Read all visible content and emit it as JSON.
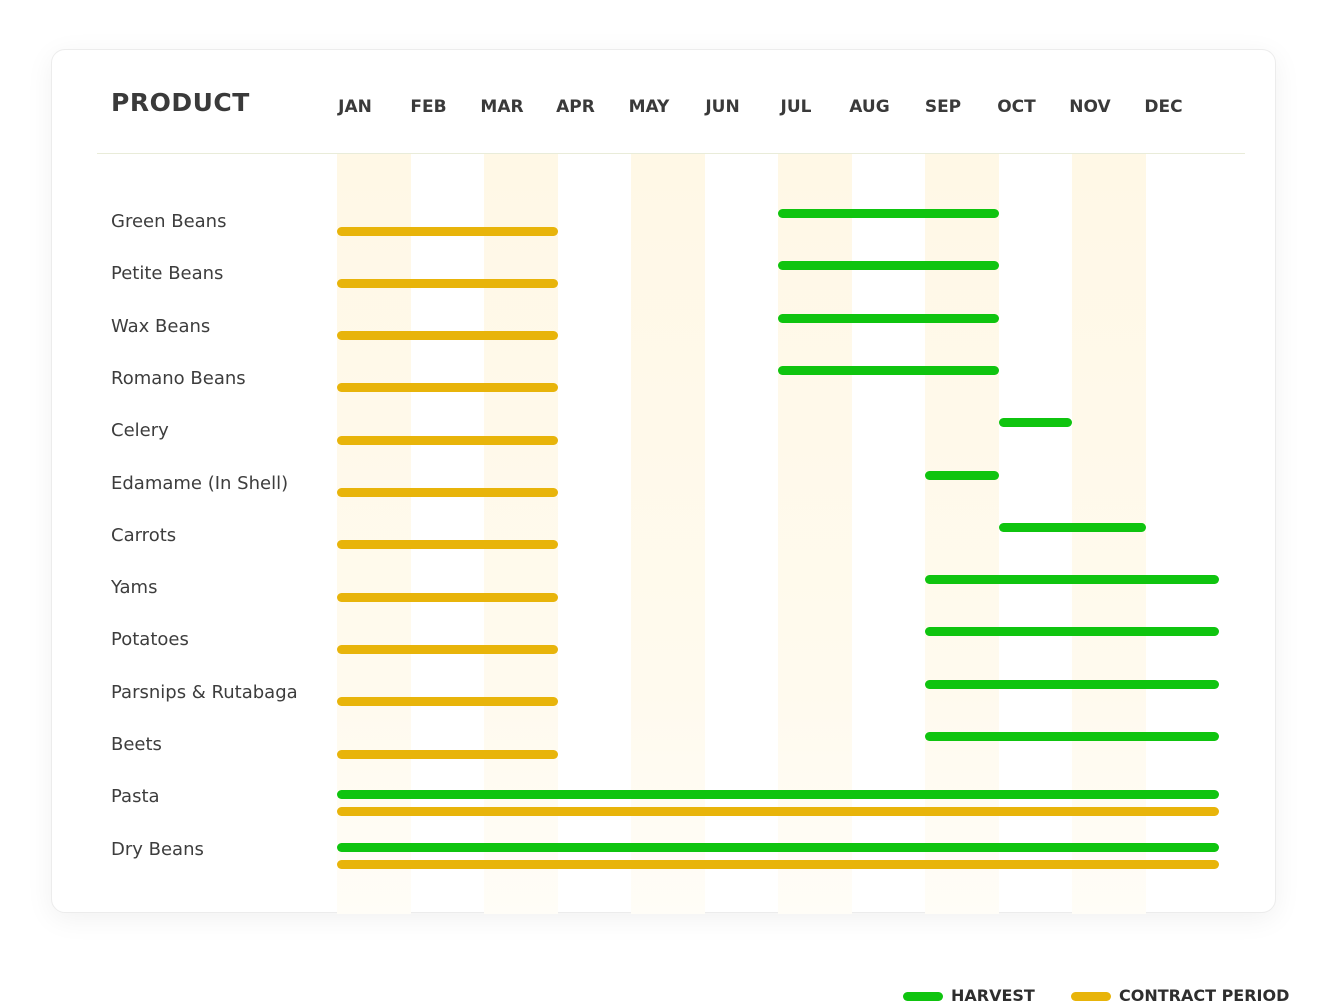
{
  "colors": {
    "harvest": "#0fc40f",
    "contract": "#e8b40a"
  },
  "legend": {
    "harvest": "HARVEST",
    "contract": "CONTRACT PERIOD"
  },
  "chart_data": {
    "type": "gantt",
    "title": "",
    "header": "PRODUCT",
    "months": [
      "JAN",
      "FEB",
      "MAR",
      "APR",
      "MAY",
      "JUN",
      "JUL",
      "AUG",
      "SEP",
      "OCT",
      "NOV",
      "DEC"
    ],
    "products": [
      {
        "name": "Green Beans",
        "harvest": [
          7,
          10
        ],
        "contract": [
          1,
          4
        ]
      },
      {
        "name": "Petite Beans",
        "harvest": [
          7,
          10
        ],
        "contract": [
          1,
          4
        ]
      },
      {
        "name": "Wax Beans",
        "harvest": [
          7,
          10
        ],
        "contract": [
          1,
          4
        ]
      },
      {
        "name": "Romano Beans",
        "harvest": [
          7,
          10
        ],
        "contract": [
          1,
          4
        ]
      },
      {
        "name": "Celery",
        "harvest": [
          10,
          11
        ],
        "contract": [
          1,
          4
        ]
      },
      {
        "name": "Edamame (In Shell)",
        "harvest": [
          9,
          10
        ],
        "contract": [
          1,
          4
        ]
      },
      {
        "name": "Carrots",
        "harvest": [
          10,
          12
        ],
        "contract": [
          1,
          4
        ]
      },
      {
        "name": "Yams",
        "harvest": [
          9,
          13
        ],
        "contract": [
          1,
          4
        ]
      },
      {
        "name": "Potatoes",
        "harvest": [
          9,
          13
        ],
        "contract": [
          1,
          4
        ]
      },
      {
        "name": "Parsnips & Rutabaga",
        "harvest": [
          9,
          13
        ],
        "contract": [
          1,
          4
        ]
      },
      {
        "name": "Beets",
        "harvest": [
          9,
          13
        ],
        "contract": [
          1,
          4
        ]
      },
      {
        "name": "Pasta",
        "harvest": [
          1,
          13
        ],
        "contract": [
          1,
          13
        ]
      },
      {
        "name": "Dry Beans",
        "harvest": [
          1,
          13
        ],
        "contract": [
          1,
          13
        ]
      }
    ]
  }
}
